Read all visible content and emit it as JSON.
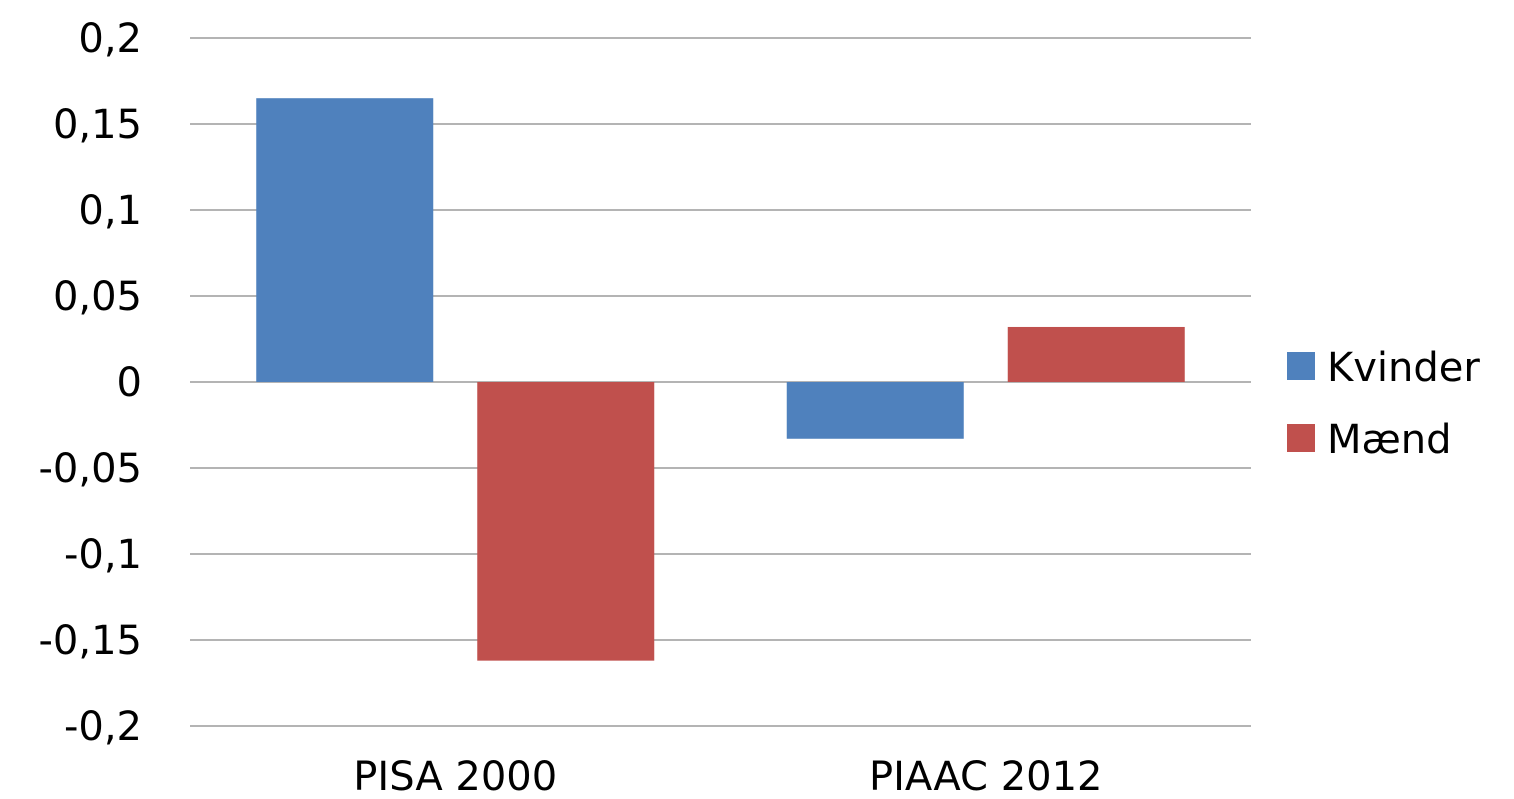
{
  "chart_data": {
    "type": "bar",
    "categories": [
      "PISA 2000",
      "PIAAC 2012"
    ],
    "series": [
      {
        "name": "Kvinder",
        "color": "#4F81BD",
        "values": [
          0.165,
          -0.033
        ]
      },
      {
        "name": "Mænd",
        "color": "#C0504D",
        "values": [
          -0.162,
          0.032
        ]
      }
    ],
    "ylim": [
      -0.2,
      0.2
    ],
    "yticks": [
      0.2,
      0.15,
      0.1,
      0.05,
      0,
      -0.05,
      -0.1,
      -0.15,
      -0.2
    ],
    "ytick_labels": [
      "0,2",
      "0,15",
      "0,1",
      "0,05",
      "0",
      "-0,05",
      "-0,1",
      "-0,15",
      "-0,2"
    ],
    "grid": true,
    "legend": "right",
    "gridline_color": "#868686"
  }
}
